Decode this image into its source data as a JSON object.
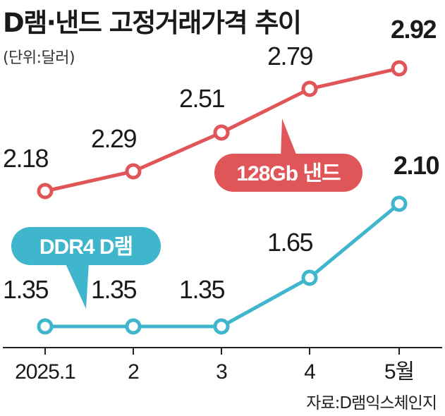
{
  "header": {
    "title": "D램·낸드 고정거래가격 추이",
    "unit": "(단위:달러)"
  },
  "source": "자료:D램익스체인지",
  "colors": {
    "nand": "#e05557",
    "dram": "#3fb6cc",
    "axis": "#222222"
  },
  "chart_data": {
    "type": "line",
    "categories": [
      "2025.1",
      "2",
      "3",
      "4",
      "5월"
    ],
    "series": [
      {
        "name": "128Gb 낸드",
        "values": [
          2.18,
          2.29,
          2.51,
          2.79,
          2.92
        ],
        "labels": [
          "2.18",
          "2.29",
          "2.51",
          "2.79",
          "2.92"
        ]
      },
      {
        "name": "DDR4 D램",
        "values": [
          1.35,
          1.35,
          1.35,
          1.65,
          2.1
        ],
        "labels": [
          "1.35",
          "1.35",
          "1.35",
          "1.65",
          "2.10"
        ]
      }
    ],
    "title": "D램·낸드 고정거래가격 추이",
    "ylabel": "(단위:달러)",
    "grid": false,
    "legend": "inline badges"
  }
}
